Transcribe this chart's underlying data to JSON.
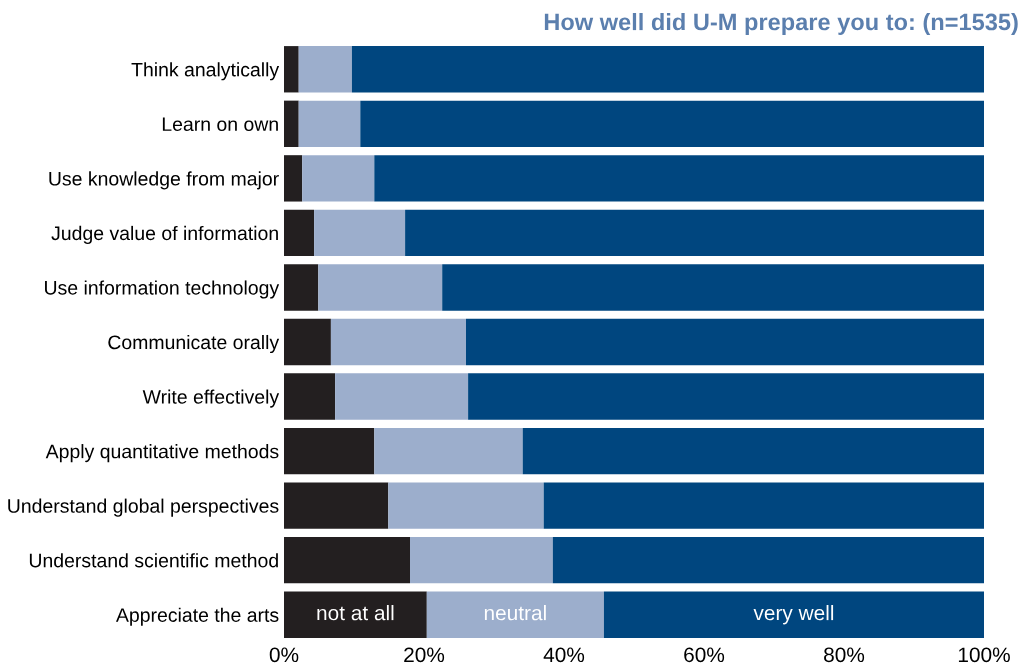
{
  "chart_data": {
    "type": "bar",
    "orientation": "horizontal",
    "stacked": true,
    "title": "How well did U-M prepare you to: (n=1535)",
    "categories": [
      "Think analytically",
      "Learn on own",
      "Use knowledge from major",
      "Judge value of information",
      "Use information technology",
      "Communicate orally",
      "Write effectively",
      "Apply quantitative methods",
      "Understand global perspectives",
      "Understand scientific method",
      "Appreciate the arts"
    ],
    "series": [
      {
        "name": "not at all",
        "color": "#231f20",
        "values": [
          2.1,
          2.1,
          2.6,
          4.3,
          4.9,
          6.7,
          7.3,
          12.9,
          14.9,
          18.0,
          20.4
        ]
      },
      {
        "name": "neutral",
        "color": "#9caecc",
        "values": [
          7.6,
          8.8,
          10.3,
          13.0,
          17.7,
          19.3,
          19.0,
          21.2,
          22.2,
          20.4,
          25.3
        ]
      },
      {
        "name": "very well",
        "color": "#00467f",
        "values": [
          90.3,
          89.1,
          87.1,
          82.7,
          77.4,
          74.0,
          73.7,
          65.9,
          62.9,
          61.6,
          54.3
        ]
      }
    ],
    "xlim": [
      0,
      100
    ],
    "xticks": [
      {
        "value": 0,
        "label": "0%"
      },
      {
        "value": 20,
        "label": "20%"
      },
      {
        "value": 40,
        "label": "40%"
      },
      {
        "value": 60,
        "label": "60%"
      },
      {
        "value": 80,
        "label": "80%"
      },
      {
        "value": 100,
        "label": "100%"
      }
    ],
    "grid": false,
    "legend": false
  }
}
